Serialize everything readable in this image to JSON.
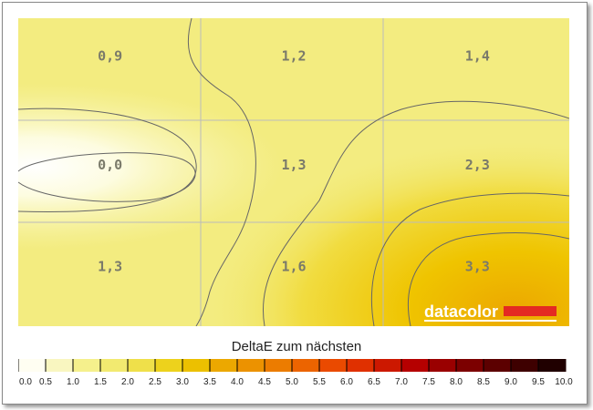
{
  "chart_data": {
    "type": "heatmap",
    "title": "DeltaE zum nächsten",
    "rows": 3,
    "cols": 3,
    "values": [
      [
        "0,9",
        "1,2",
        "1,4"
      ],
      [
        "0,0",
        "1,3",
        "2,3"
      ],
      [
        "1,3",
        "1,6",
        "3,3"
      ]
    ],
    "colorbar": {
      "min": 0,
      "max": 10,
      "step": 0.5,
      "tick_labels": [
        "0.0",
        "0.5",
        "1.0",
        "1.5",
        "2.0",
        "2.5",
        "3.0",
        "3.5",
        "4.0",
        "4.5",
        "5.0",
        "5.5",
        "6.0",
        "6.5",
        "7.0",
        "7.5",
        "8.0",
        "8.5",
        "9.0",
        "9.5",
        "10.0"
      ],
      "colors": [
        "#fffef2",
        "#f9f6c0",
        "#f5f08c",
        "#f2ea70",
        "#efe04a",
        "#edd21c",
        "#ecc000",
        "#eca800",
        "#ec9200",
        "#ec7c00",
        "#ec6400",
        "#ea4a00",
        "#e03000",
        "#cc1800",
        "#b50000",
        "#9a0000",
        "#7c0000",
        "#5c0000",
        "#3e0000",
        "#200000"
      ]
    },
    "logo": "datacolor"
  }
}
